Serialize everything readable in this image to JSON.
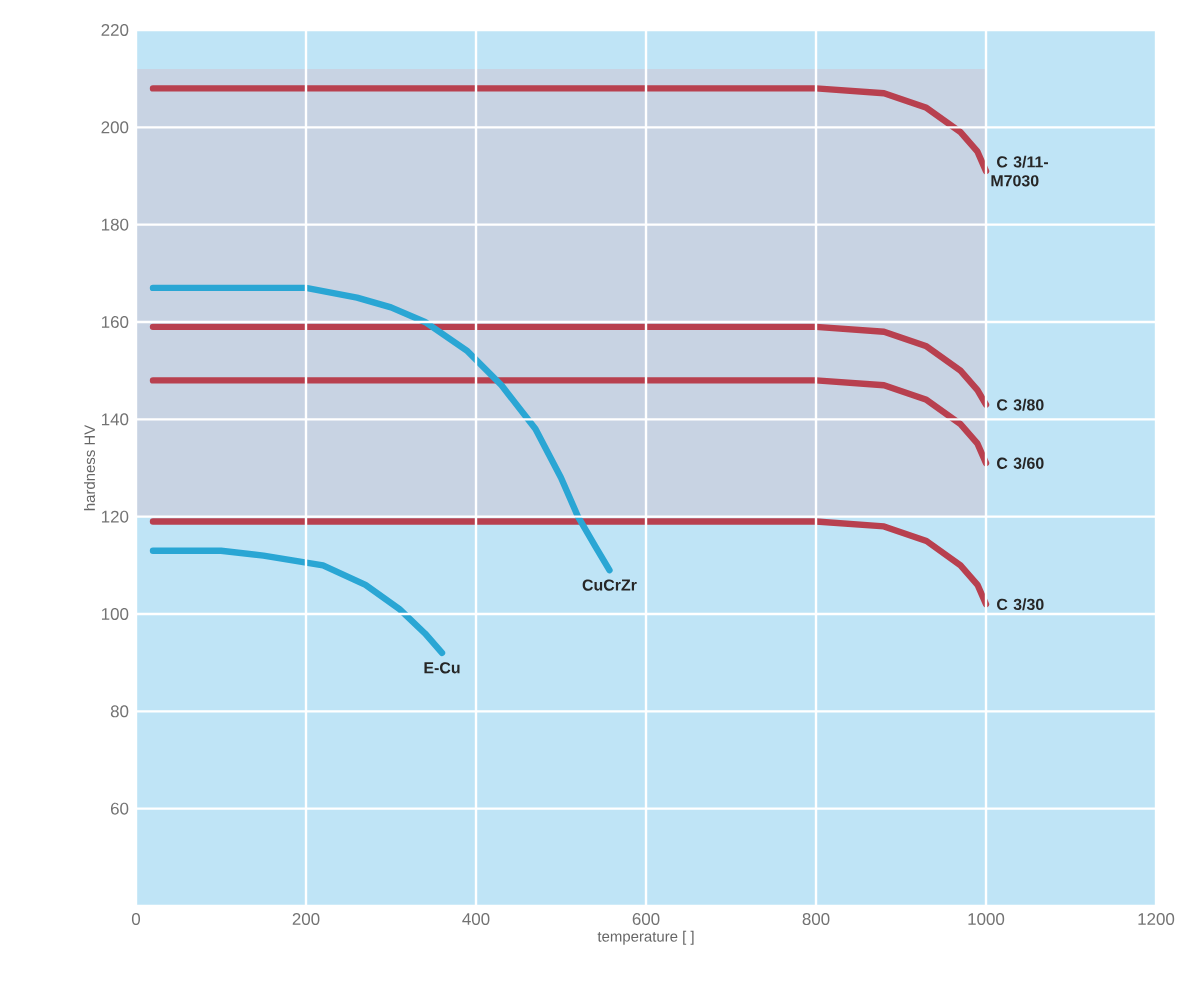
{
  "chart_data": {
    "type": "line",
    "xlabel": "temperature [ ]",
    "ylabel": "hardness HV",
    "xlim": [
      0,
      1200
    ],
    "ylim": [
      40,
      220
    ],
    "xticks": [
      0,
      200,
      400,
      600,
      800,
      1000,
      1200
    ],
    "yticks": [
      {
        "value": 40,
        "label": null
      },
      60,
      80,
      100,
      120,
      140,
      160,
      180,
      200,
      220
    ],
    "grid": true,
    "series": [
      {
        "color": "#c8d3e3",
        "x": [
          0,
          1000
        ],
        "values": [
          null,
          null
        ],
        "lower": [
          120,
          120
        ],
        "upper": [
          212,
          212
        ]
      },
      {
        "name": "C 3/11-M7030",
        "color": "#b8404f",
        "x": [
          20,
          800,
          880,
          930,
          970,
          990,
          1000
        ],
        "values": [
          208,
          208,
          207,
          204,
          199,
          195,
          191
        ]
      },
      {
        "name": "C 3/80",
        "color": "#b8404f",
        "x": [
          20,
          800,
          880,
          930,
          970,
          990,
          1000
        ],
        "values": [
          159,
          159,
          158,
          155,
          150,
          146,
          143
        ]
      },
      {
        "name": "C 3/60",
        "color": "#b8404f",
        "x": [
          20,
          800,
          880,
          930,
          970,
          990,
          1000
        ],
        "values": [
          148,
          148,
          147,
          144,
          139,
          135,
          131
        ]
      },
      {
        "name": "C 3/30",
        "color": "#b8404f",
        "x": [
          20,
          800,
          880,
          930,
          970,
          990,
          1000
        ],
        "values": [
          119,
          119,
          118,
          115,
          110,
          106,
          102
        ]
      },
      {
        "name": "CuCrZr",
        "color": "#2aa6d4",
        "x": [
          20,
          200,
          260,
          300,
          340,
          390,
          430,
          470,
          500,
          520,
          540,
          557
        ],
        "values": [
          167,
          167,
          165,
          163,
          160,
          154,
          147,
          138,
          128,
          120,
          114,
          109
        ]
      },
      {
        "name": "E-Cu",
        "color": "#2aa6d4",
        "x": [
          20,
          100,
          150,
          220,
          270,
          310,
          340,
          360
        ],
        "values": [
          113,
          113,
          112,
          110,
          106,
          101,
          96,
          92
        ]
      }
    ]
  }
}
